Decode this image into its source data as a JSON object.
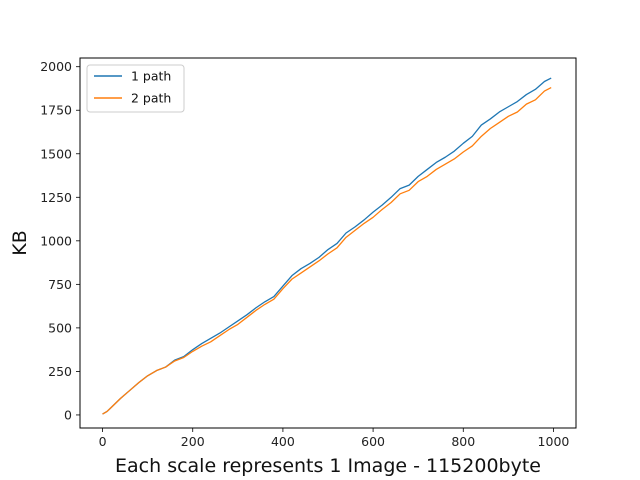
{
  "chart_data": {
    "type": "line",
    "title": "",
    "xlabel": "Each scale represents 1 Image - 115200byte",
    "ylabel": "KB",
    "xlim": [
      -50,
      1050
    ],
    "ylim": [
      -75,
      2050
    ],
    "xticks": [
      0,
      200,
      400,
      600,
      800,
      1000
    ],
    "yticks": [
      0,
      250,
      500,
      750,
      1000,
      1250,
      1500,
      1750,
      2000
    ],
    "grid": false,
    "legend_position": "top-left",
    "series": [
      {
        "name": "1 path",
        "color": "#1f77b4",
        "x": [
          0,
          10,
          20,
          40,
          60,
          80,
          100,
          120,
          140,
          160,
          180,
          200,
          220,
          240,
          260,
          280,
          300,
          320,
          340,
          360,
          380,
          400,
          420,
          440,
          460,
          480,
          500,
          520,
          540,
          560,
          580,
          600,
          620,
          640,
          660,
          680,
          700,
          720,
          740,
          760,
          780,
          800,
          820,
          840,
          860,
          880,
          900,
          920,
          940,
          960,
          980,
          995
        ],
        "y": [
          5,
          20,
          45,
          95,
          140,
          185,
          225,
          255,
          275,
          315,
          335,
          375,
          410,
          440,
          470,
          505,
          540,
          575,
          615,
          650,
          680,
          740,
          800,
          840,
          870,
          905,
          950,
          985,
          1045,
          1080,
          1120,
          1165,
          1205,
          1250,
          1300,
          1320,
          1370,
          1410,
          1450,
          1480,
          1515,
          1560,
          1600,
          1665,
          1700,
          1740,
          1770,
          1800,
          1840,
          1870,
          1915,
          1935
        ]
      },
      {
        "name": "2 path",
        "color": "#ff7f0e",
        "x": [
          0,
          10,
          20,
          40,
          60,
          80,
          100,
          120,
          140,
          160,
          180,
          200,
          220,
          240,
          260,
          280,
          300,
          320,
          340,
          360,
          380,
          400,
          420,
          440,
          460,
          480,
          500,
          520,
          540,
          560,
          580,
          600,
          620,
          640,
          660,
          680,
          700,
          720,
          740,
          760,
          780,
          800,
          820,
          840,
          860,
          880,
          900,
          920,
          940,
          960,
          980,
          995
        ],
        "y": [
          5,
          20,
          45,
          95,
          140,
          185,
          225,
          255,
          275,
          310,
          330,
          365,
          395,
          420,
          455,
          490,
          520,
          560,
          600,
          635,
          665,
          725,
          780,
          815,
          850,
          885,
          925,
          960,
          1020,
          1060,
          1100,
          1135,
          1180,
          1220,
          1270,
          1290,
          1340,
          1370,
          1410,
          1440,
          1470,
          1510,
          1545,
          1600,
          1645,
          1680,
          1715,
          1740,
          1785,
          1810,
          1860,
          1880
        ]
      }
    ]
  }
}
